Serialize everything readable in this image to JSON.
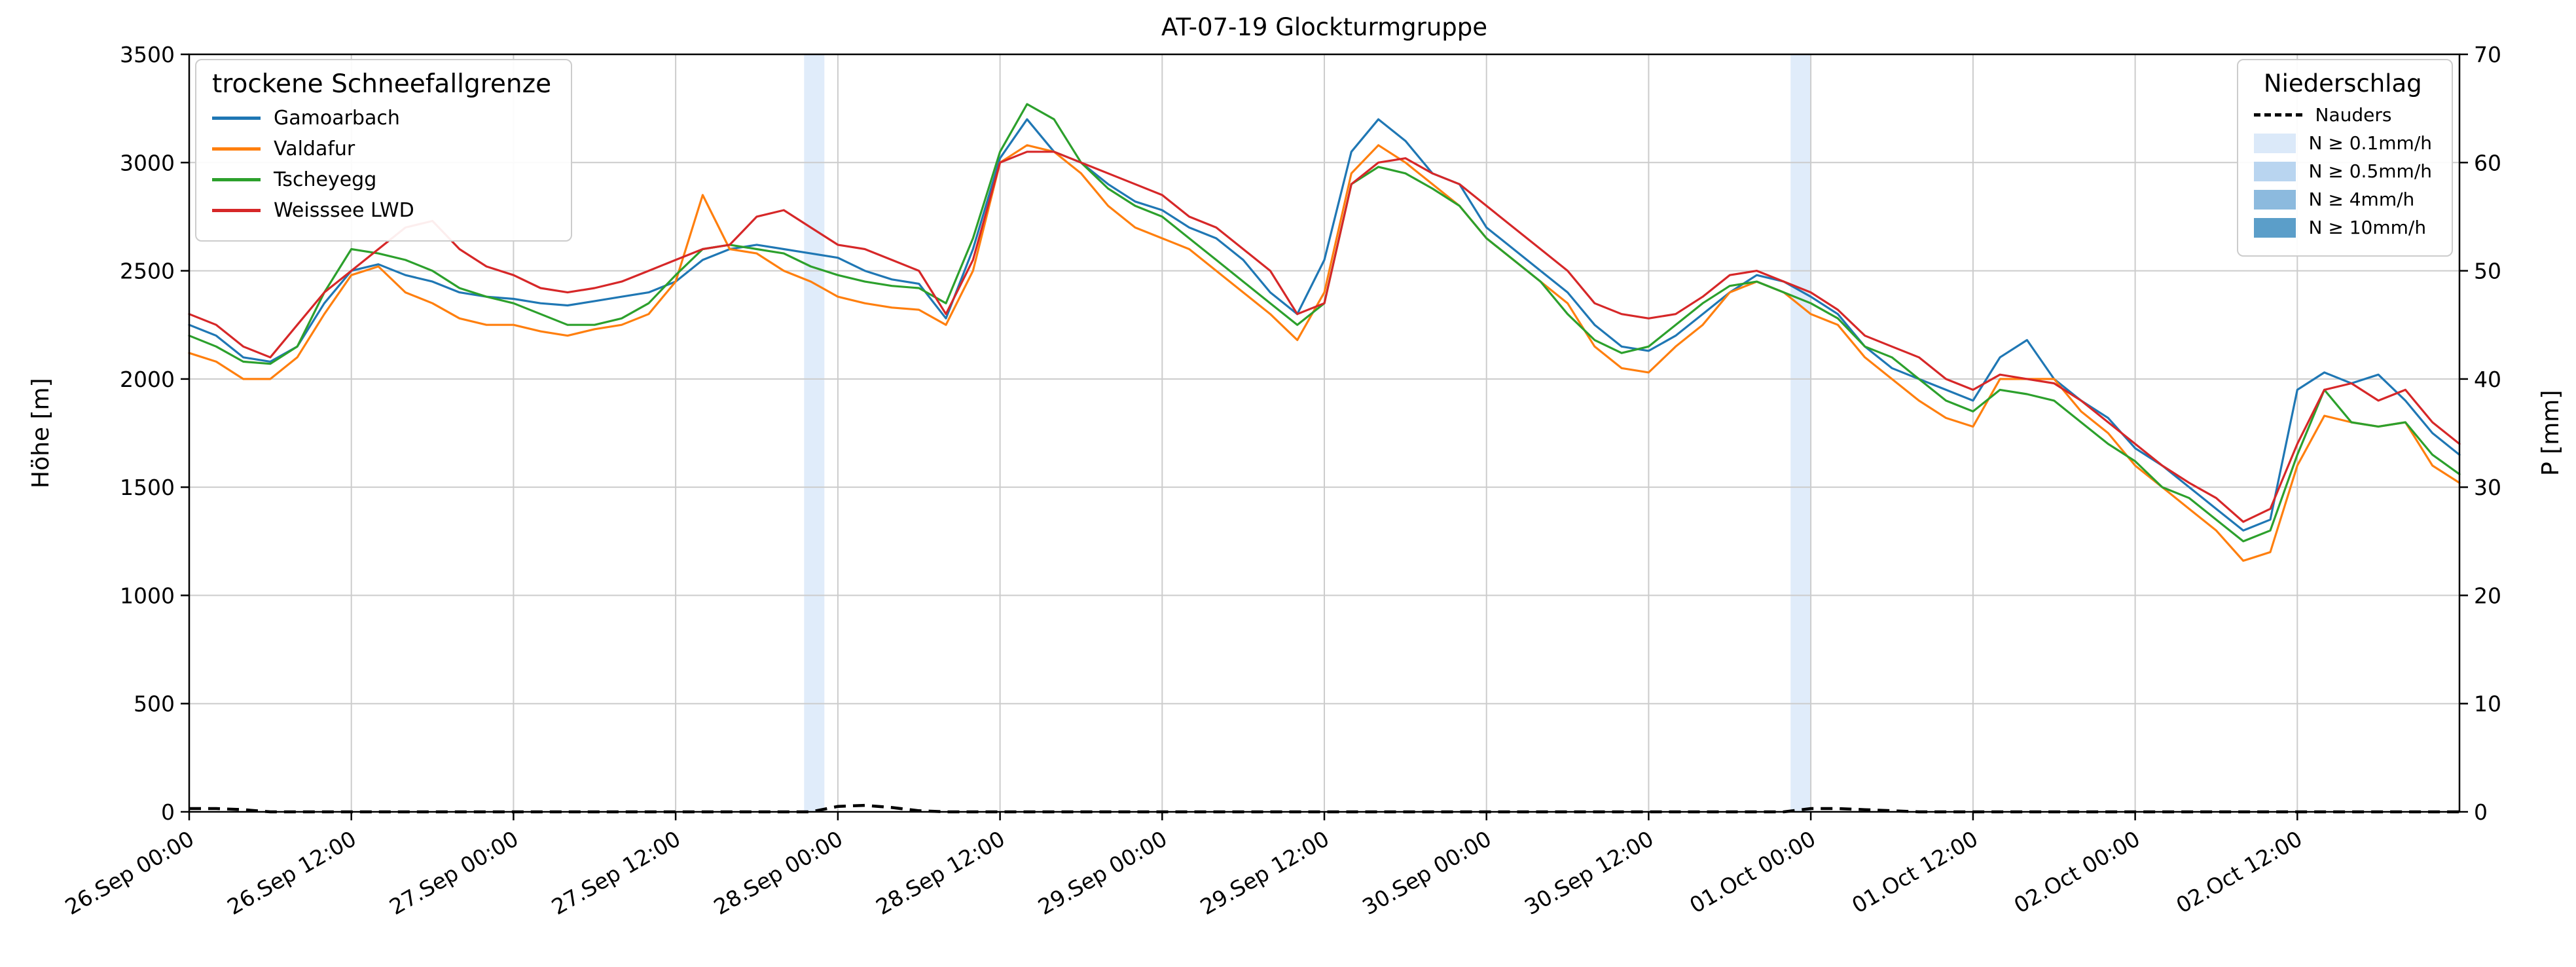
{
  "title": "AT-07-19 Glockturmgruppe",
  "y_left_label": "Höhe [m]",
  "y_right_label": "P [mm]",
  "legend_left": {
    "title": "trockene Schneefallgrenze"
  },
  "legend_right": {
    "title": "Niederschlag",
    "patch_entries": [
      {
        "label": "N ≥ 0.1mm/h",
        "color": "#dbe9f9"
      },
      {
        "label": "N ≥ 0.5mm/h",
        "color": "#b9d5f0"
      },
      {
        "label": "N ≥ 4mm/h",
        "color": "#8cbade"
      },
      {
        "label": "N ≥ 10mm/h",
        "color": "#5b9ec9"
      }
    ]
  },
  "chart_data": {
    "type": "line",
    "title": "AT-07-19 Glockturmgruppe",
    "ylabel_left": "Höhe [m]",
    "ylabel_right": "P [mm]",
    "x_unit": "hours since 26.Sep 00:00",
    "xlim": [
      0,
      168
    ],
    "x_step_hours": 2,
    "x_ticks": [
      0,
      12,
      24,
      36,
      48,
      60,
      72,
      84,
      96,
      108,
      120,
      132,
      144,
      156
    ],
    "x_tick_labels": [
      "26.Sep 00:00",
      "26.Sep 12:00",
      "27.Sep 00:00",
      "27.Sep 12:00",
      "28.Sep 00:00",
      "28.Sep 12:00",
      "29.Sep 00:00",
      "29.Sep 12:00",
      "30.Sep 00:00",
      "30.Sep 12:00",
      "01.Oct 00:00",
      "01.Oct 12:00",
      "02.Oct 00:00",
      "02.Oct 12:00"
    ],
    "ylim_left": [
      0,
      3500
    ],
    "yticks_left": [
      0,
      500,
      1000,
      1500,
      2000,
      2500,
      3000,
      3500
    ],
    "ylim_right": [
      0,
      70
    ],
    "yticks_right": [
      0,
      10,
      20,
      30,
      40,
      50,
      60,
      70
    ],
    "grid": true,
    "grid_color": "#cccccc",
    "series": [
      {
        "id": "gamoarbach",
        "name": "Gamoarbach",
        "color": "#1f77b4",
        "values": [
          2250,
          2200,
          2100,
          2080,
          2150,
          2350,
          2500,
          2530,
          2480,
          2450,
          2400,
          2380,
          2370,
          2350,
          2340,
          2360,
          2380,
          2400,
          2450,
          2550,
          2600,
          2620,
          2600,
          2580,
          2560,
          2500,
          2460,
          2440,
          2280,
          2600,
          3020,
          3200,
          3050,
          3000,
          2900,
          2820,
          2780,
          2700,
          2650,
          2550,
          2400,
          2300,
          2550,
          3050,
          3200,
          3100,
          2950,
          2900,
          2700,
          2600,
          2500,
          2400,
          2250,
          2150,
          2130,
          2200,
          2300,
          2400,
          2480,
          2450,
          2380,
          2300,
          2150,
          2050,
          2000,
          1950,
          1900,
          2100,
          2180,
          2000,
          1900,
          1820,
          1680,
          1600,
          1500,
          1400,
          1300,
          1350,
          1950,
          2030,
          1980,
          2020,
          1900,
          1750,
          1650
        ]
      },
      {
        "id": "valdafur",
        "name": "Valdafur",
        "color": "#ff7f0e",
        "values": [
          2120,
          2080,
          2000,
          2000,
          2100,
          2300,
          2480,
          2520,
          2400,
          2350,
          2280,
          2250,
          2250,
          2220,
          2200,
          2230,
          2250,
          2300,
          2450,
          2850,
          2600,
          2580,
          2500,
          2450,
          2380,
          2350,
          2330,
          2320,
          2250,
          2500,
          3000,
          3080,
          3050,
          2950,
          2800,
          2700,
          2650,
          2600,
          2500,
          2400,
          2300,
          2180,
          2400,
          2950,
          3080,
          3000,
          2900,
          2800,
          2650,
          2550,
          2450,
          2350,
          2150,
          2050,
          2030,
          2150,
          2250,
          2400,
          2450,
          2400,
          2300,
          2250,
          2100,
          2000,
          1900,
          1820,
          1780,
          2000,
          2000,
          2000,
          1850,
          1750,
          1600,
          1500,
          1400,
          1300,
          1160,
          1200,
          1600,
          1830,
          1800,
          1780,
          1800,
          1600,
          1520
        ]
      },
      {
        "id": "tscheyegg",
        "name": "Tscheyegg",
        "color": "#2ca02c",
        "values": [
          2200,
          2150,
          2080,
          2070,
          2150,
          2400,
          2600,
          2580,
          2550,
          2500,
          2420,
          2380,
          2350,
          2300,
          2250,
          2250,
          2280,
          2350,
          2480,
          2600,
          2620,
          2600,
          2580,
          2520,
          2480,
          2450,
          2430,
          2420,
          2350,
          2650,
          3050,
          3270,
          3200,
          3000,
          2880,
          2800,
          2750,
          2650,
          2550,
          2450,
          2350,
          2250,
          2350,
          2900,
          2980,
          2950,
          2880,
          2800,
          2650,
          2550,
          2450,
          2300,
          2180,
          2120,
          2150,
          2250,
          2350,
          2430,
          2450,
          2400,
          2350,
          2280,
          2150,
          2100,
          2000,
          1900,
          1850,
          1950,
          1930,
          1900,
          1800,
          1700,
          1620,
          1500,
          1450,
          1350,
          1250,
          1300,
          1650,
          1950,
          1800,
          1780,
          1800,
          1650,
          1560
        ]
      },
      {
        "id": "weisssee-lwd",
        "name": "Weisssee LWD",
        "color": "#d62728",
        "values": [
          2300,
          2250,
          2150,
          2100,
          2250,
          2400,
          2500,
          2600,
          2700,
          2730,
          2600,
          2520,
          2480,
          2420,
          2400,
          2420,
          2450,
          2500,
          2550,
          2600,
          2620,
          2750,
          2780,
          2700,
          2620,
          2600,
          2550,
          2500,
          2300,
          2550,
          3000,
          3050,
          3050,
          3000,
          2950,
          2900,
          2850,
          2750,
          2700,
          2600,
          2500,
          2300,
          2350,
          2900,
          3000,
          3020,
          2950,
          2900,
          2800,
          2700,
          2600,
          2500,
          2350,
          2300,
          2280,
          2300,
          2380,
          2480,
          2500,
          2450,
          2400,
          2320,
          2200,
          2150,
          2100,
          2000,
          1950,
          2020,
          2000,
          1980,
          1900,
          1800,
          1700,
          1600,
          1520,
          1450,
          1340,
          1400,
          1700,
          1950,
          1980,
          1900,
          1950,
          1800,
          1700
        ]
      }
    ],
    "precip_line": {
      "id": "nauders",
      "name": "Nauders",
      "color": "#000000",
      "style": "dashed",
      "axis": "right",
      "values": [
        0.3,
        0.3,
        0.2,
        0,
        0,
        0,
        0,
        0,
        0,
        0,
        0,
        0,
        0,
        0,
        0,
        0,
        0,
        0,
        0,
        0,
        0,
        0,
        0,
        0,
        0.5,
        0.6,
        0.4,
        0.1,
        0,
        0,
        0,
        0,
        0,
        0,
        0,
        0,
        0,
        0,
        0,
        0,
        0,
        0,
        0,
        0,
        0,
        0,
        0,
        0,
        0,
        0,
        0,
        0,
        0,
        0,
        0,
        0,
        0,
        0,
        0,
        0,
        0.3,
        0.3,
        0.2,
        0.1,
        0,
        0,
        0,
        0,
        0,
        0,
        0,
        0,
        0,
        0,
        0,
        0,
        0,
        0,
        0,
        0,
        0,
        0,
        0,
        0,
        0
      ]
    },
    "precip_bands": [
      {
        "start_hour": 45.5,
        "end_hour": 47,
        "level": "N ≥ 0.1mm/h"
      },
      {
        "start_hour": 118.5,
        "end_hour": 120,
        "level": "N ≥ 0.1mm/h"
      }
    ],
    "precip_band_fill": "#dbe9f9"
  }
}
